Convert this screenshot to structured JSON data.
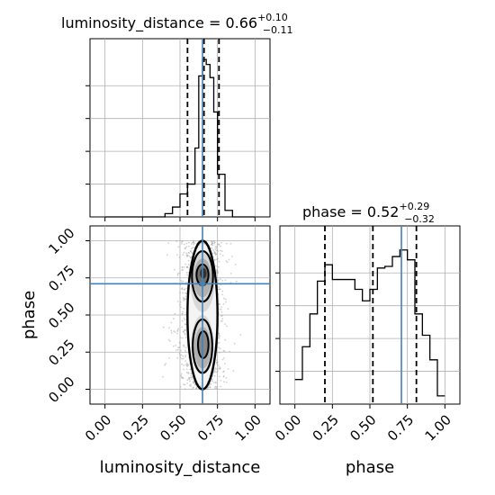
{
  "chart_data": [
    {
      "type": "histogram",
      "panel": "top-left",
      "title": {
        "main": "luminosity_distance = 0.66",
        "sup": "+0.10",
        "sub": "−0.11"
      },
      "xlim": [
        -0.1,
        1.1
      ],
      "grid": true,
      "bins_edges": [
        0.0,
        0.05,
        0.1,
        0.15,
        0.2,
        0.25,
        0.3,
        0.35,
        0.4,
        0.45,
        0.5,
        0.55,
        0.6,
        0.625,
        0.65,
        0.675,
        0.7,
        0.725,
        0.75,
        0.8,
        0.85,
        0.9,
        0.95,
        1.0
      ],
      "counts": [
        0,
        0,
        0,
        0,
        0,
        0,
        0,
        0,
        0.02,
        0.06,
        0.14,
        0.2,
        0.42,
        0.86,
        0.96,
        0.93,
        0.85,
        0.64,
        0.26,
        0.04,
        0,
        0,
        0
      ],
      "quantile_lines": [
        0.55,
        0.66,
        0.76
      ],
      "truth": 0.65,
      "line_color": "#000000",
      "truth_color": "#4682b4"
    },
    {
      "type": "contour",
      "panel": "bottom-left",
      "xlabel": "luminosity_distance",
      "ylabel": "phase",
      "xlim": [
        -0.1,
        1.1
      ],
      "ylim": [
        -0.1,
        1.1
      ],
      "xticks": [
        "0.00",
        "0.25",
        "0.50",
        "0.75",
        "1.00"
      ],
      "yticks": [
        "0.00",
        "0.25",
        "0.50",
        "0.75",
        "1.00"
      ],
      "grid": true,
      "truth": {
        "x": 0.65,
        "y": 0.71
      },
      "truth_color": "#4682b4",
      "density_ranges": {
        "x": [
          0.4,
          0.9
        ],
        "y": [
          0.0,
          1.0
        ]
      }
    },
    {
      "type": "histogram",
      "panel": "bottom-right",
      "title": {
        "main": "phase = 0.52",
        "sup": "+0.29",
        "sub": "−0.32"
      },
      "xlabel": "phase",
      "xlim": [
        -0.1,
        1.1
      ],
      "xticks": [
        "0.00",
        "0.25",
        "0.50",
        "0.75",
        "1.00"
      ],
      "grid": true,
      "bins_edges": [
        0.0,
        0.05,
        0.1,
        0.15,
        0.2,
        0.25,
        0.3,
        0.35,
        0.4,
        0.45,
        0.5,
        0.55,
        0.6,
        0.65,
        0.7,
        0.75,
        0.8,
        0.85,
        0.9,
        0.95,
        1.0
      ],
      "counts": [
        0.15,
        0.35,
        0.55,
        0.75,
        0.85,
        0.76,
        0.76,
        0.76,
        0.7,
        0.63,
        0.7,
        0.83,
        0.84,
        0.9,
        0.94,
        0.88,
        0.55,
        0.42,
        0.27,
        0.05
      ],
      "quantile_lines": [
        0.2,
        0.52,
        0.81
      ],
      "truth": 0.71,
      "line_color": "#000000",
      "truth_color": "#4682b4"
    }
  ]
}
